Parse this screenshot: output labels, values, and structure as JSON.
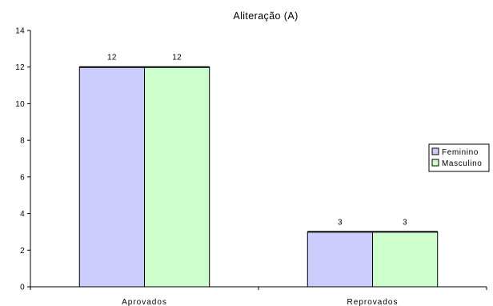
{
  "chart_data": {
    "type": "bar",
    "title": "Aliteração (A)",
    "categories": [
      "Aprovados",
      "Reprovados"
    ],
    "series": [
      {
        "name": "Feminino",
        "values": [
          12,
          3
        ],
        "color": "#ccccff"
      },
      {
        "name": "Masculino",
        "values": [
          12,
          3
        ],
        "color": "#ccffcc"
      }
    ],
    "ylim": [
      0,
      14
    ],
    "yticks": [
      0,
      2,
      4,
      6,
      8,
      10,
      12,
      14
    ],
    "xlabel": "",
    "ylabel": "",
    "grid": false,
    "data_labels": true,
    "legend_position": "right"
  }
}
